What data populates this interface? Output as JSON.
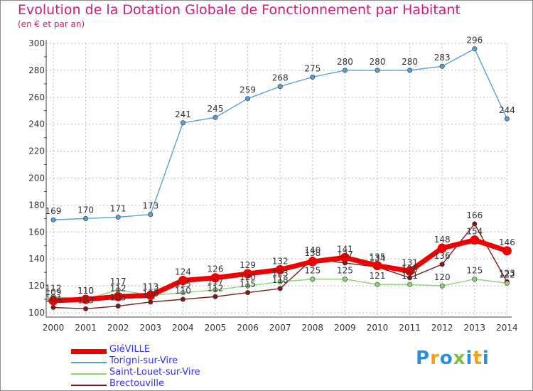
{
  "chart_data": {
    "type": "line",
    "title": "Evolution de la Dotation Globale de Fonctionnement par Habitant",
    "subtitle": "(en € et par an)",
    "xlabel": "",
    "ylabel": "",
    "ylim": [
      100,
      300
    ],
    "yticks": [
      "100",
      "120",
      "140",
      "160",
      "180",
      "200",
      "220",
      "240",
      "260",
      "280",
      "300"
    ],
    "categories": [
      "2000",
      "2001",
      "2002",
      "2003",
      "2004",
      "2005",
      "2006",
      "2007",
      "2008",
      "2009",
      "2010",
      "2011",
      "2012",
      "2013",
      "2014"
    ],
    "series": [
      {
        "name": "Brectouville",
        "color": "#7a1a1a",
        "values": [
          104,
          103,
          105,
          108,
          110,
          112,
          115,
          118,
          140,
          137,
          134,
          126,
          136,
          166,
          123
        ],
        "labels": [
          "104",
          "103",
          "105",
          "108",
          "110",
          "112",
          "115",
          "118",
          "140",
          "137",
          "134",
          "126",
          "136",
          "166",
          "123"
        ]
      },
      {
        "name": "Saint-Louet-sur-Vire",
        "color": "#8fd07a",
        "values": [
          112,
          110,
          117,
          113,
          115,
          117,
          120,
          123,
          125,
          125,
          121,
          121,
          120,
          125,
          122
        ],
        "labels": [
          "112",
          "110",
          "117",
          "113",
          "115",
          "117",
          "120",
          "123",
          "125",
          "125",
          "121",
          "121",
          "120",
          "125",
          "122"
        ]
      },
      {
        "name": "Torigni-sur-Vire",
        "color": "#5a9fd4",
        "values": [
          169,
          170,
          171,
          173,
          241,
          245,
          259,
          268,
          275,
          280,
          280,
          280,
          283,
          296,
          244
        ],
        "labels": [
          "169",
          "170",
          "171",
          "173",
          "241",
          "245",
          "259",
          "268",
          "275",
          "280",
          "280",
          "280",
          "283",
          "296",
          "244"
        ]
      },
      {
        "name": "GléVILLE",
        "color": "#ee0000",
        "values": [
          109,
          110,
          112,
          113,
          124,
          126,
          129,
          132,
          138,
          141,
          135,
          131,
          148,
          154,
          146
        ],
        "labels": [
          "109",
          "110",
          "112",
          "113",
          "124",
          "126",
          "129",
          "132",
          "138",
          "141",
          "135",
          "131",
          "148",
          "154",
          "146"
        ]
      }
    ],
    "legend": [
      "GléVILLE",
      "Torigni-sur-Vire",
      "Saint-Louet-sur-Vire",
      "Brectouville"
    ]
  },
  "logo": {
    "letters": [
      "P",
      "r",
      "o",
      "x",
      "i",
      "t",
      "i"
    ],
    "colors": [
      "#2b8fd8",
      "#f0a21a",
      "#2b8fd8",
      "#7cc242",
      "#2b8fd8",
      "#f0a21a",
      "#2b8fd8"
    ]
  }
}
